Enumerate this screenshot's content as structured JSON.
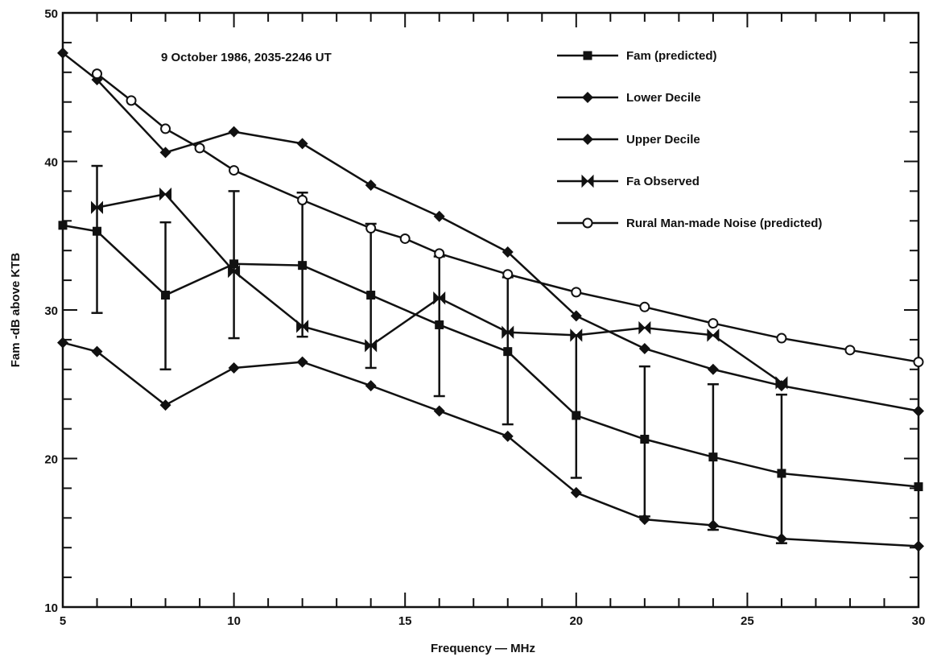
{
  "chart_data": {
    "type": "line",
    "subtitle": "9 October 1986, 2035-2246 UT",
    "xlabel": "Frequency — MHz",
    "ylabel": "Fam -dB above KTB",
    "xlim": [
      5,
      30
    ],
    "ylim": [
      10,
      50
    ],
    "xticks": [
      5,
      10,
      15,
      20,
      25,
      30
    ],
    "yticks": [
      10,
      20,
      30,
      40,
      50
    ],
    "grid": false,
    "legend_position": "top-right",
    "series": [
      {
        "name": "Fam (predicted)",
        "marker": "square",
        "x": [
          5,
          6,
          8,
          10,
          12,
          14,
          16,
          18,
          20,
          22,
          24,
          26,
          30
        ],
        "y": [
          35.7,
          35.3,
          31.0,
          33.1,
          33.0,
          31.0,
          29.0,
          27.2,
          22.9,
          21.3,
          20.1,
          19.0,
          18.1
        ]
      },
      {
        "name": "Lower Decile",
        "marker": "diamond",
        "x": [
          5,
          6,
          8,
          10,
          12,
          14,
          16,
          18,
          20,
          22,
          24,
          26,
          30
        ],
        "y": [
          27.8,
          27.2,
          23.6,
          26.1,
          26.5,
          24.9,
          23.2,
          21.5,
          17.7,
          15.9,
          15.5,
          14.6,
          14.1
        ]
      },
      {
        "name": "Upper Decile",
        "marker": "diamond",
        "x": [
          5,
          6,
          8,
          10,
          12,
          14,
          16,
          18,
          20,
          22,
          24,
          26,
          30
        ],
        "y": [
          47.3,
          45.5,
          40.6,
          42.0,
          41.2,
          38.4,
          36.3,
          33.9,
          29.6,
          27.4,
          26.0,
          24.9,
          23.2
        ]
      },
      {
        "name": "Fa Observed",
        "marker": "bowtie",
        "x": [
          6,
          8,
          10,
          12,
          14,
          16,
          18,
          20,
          22,
          24,
          26
        ],
        "y": [
          36.9,
          37.8,
          32.6,
          28.9,
          27.6,
          30.8,
          28.5,
          28.3,
          28.8,
          28.3,
          25.1
        ],
        "error_low": [
          29.8,
          26.0,
          28.1,
          28.2,
          26.1,
          24.2,
          22.3,
          18.7,
          16.1,
          15.2,
          14.3
        ],
        "error_high": [
          39.7,
          35.9,
          38.0,
          37.9,
          35.8,
          33.6,
          32.2,
          28.3,
          26.2,
          25.0,
          24.3
        ]
      },
      {
        "name": "Rural Man-made Noise (predicted)",
        "marker": "circle",
        "x": [
          6,
          7,
          8,
          9,
          10,
          12,
          14,
          15,
          16,
          18,
          20,
          22,
          24,
          26,
          28,
          30
        ],
        "y": [
          45.9,
          44.1,
          42.2,
          40.9,
          39.4,
          37.4,
          35.5,
          34.8,
          33.8,
          32.4,
          31.2,
          30.2,
          29.1,
          28.1,
          27.3,
          26.5
        ]
      }
    ]
  }
}
